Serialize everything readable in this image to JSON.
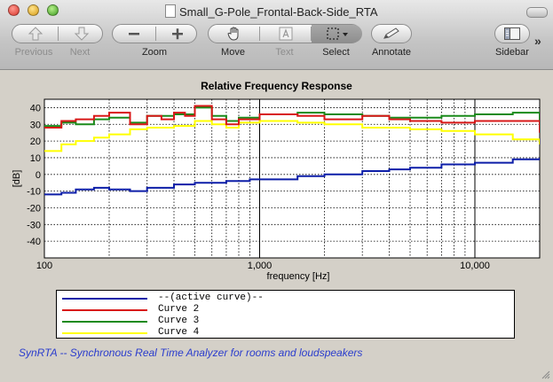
{
  "window": {
    "title": "Small_G-Pole_Frontal-Back-Side_RTA"
  },
  "toolbar": {
    "previous_label": "Previous",
    "next_label": "Next",
    "zoom_label": "Zoom",
    "move_label": "Move",
    "text_label": "Text",
    "select_label": "Select",
    "annotate_label": "Annotate",
    "sidebar_label": "Sidebar"
  },
  "footer": {
    "text": "SynRTA -- Synchronous Real Time Analyzer for rooms and loudspeakers"
  },
  "chart_data": {
    "type": "line",
    "title": "Relative Frequency Response",
    "xlabel": "frequency [Hz]",
    "ylabel": "[dB]",
    "xscale": "log",
    "xlim": [
      100,
      20000
    ],
    "ylim": [
      -50,
      45
    ],
    "grid": true,
    "legend_position": "bottom",
    "y_ticks": [
      40,
      30,
      20,
      10,
      0,
      -10,
      -20,
      -30,
      -40
    ],
    "x_ticks": [
      100,
      1000,
      10000
    ],
    "x_tick_labels": [
      "100",
      "1,000",
      "10,000"
    ],
    "series": [
      {
        "name": "--(active curve)--",
        "color": "#0d1ea8",
        "points": [
          [
            100,
            -12
          ],
          [
            120,
            -11
          ],
          [
            140,
            -9
          ],
          [
            170,
            -8
          ],
          [
            200,
            -9
          ],
          [
            250,
            -10
          ],
          [
            300,
            -8
          ],
          [
            400,
            -6
          ],
          [
            500,
            -5
          ],
          [
            700,
            -4
          ],
          [
            900,
            -3
          ],
          [
            1000,
            -3
          ],
          [
            1500,
            -1
          ],
          [
            2000,
            0
          ],
          [
            3000,
            2
          ],
          [
            4000,
            3
          ],
          [
            5000,
            4
          ],
          [
            7000,
            6
          ],
          [
            10000,
            7
          ],
          [
            15000,
            9
          ],
          [
            20000,
            10
          ]
        ]
      },
      {
        "name": "Curve 2",
        "color": "#d81818",
        "points": [
          [
            100,
            28
          ],
          [
            120,
            32
          ],
          [
            140,
            33
          ],
          [
            170,
            35
          ],
          [
            200,
            37
          ],
          [
            250,
            30
          ],
          [
            300,
            35
          ],
          [
            350,
            33
          ],
          [
            400,
            37
          ],
          [
            450,
            35
          ],
          [
            500,
            41
          ],
          [
            600,
            33
          ],
          [
            700,
            30
          ],
          [
            800,
            33
          ],
          [
            1000,
            36
          ],
          [
            1500,
            35
          ],
          [
            2000,
            33
          ],
          [
            3000,
            35
          ],
          [
            4000,
            33
          ],
          [
            5000,
            32
          ],
          [
            7000,
            31
          ],
          [
            10000,
            32
          ],
          [
            15000,
            32
          ],
          [
            20000,
            25
          ]
        ]
      },
      {
        "name": "Curve 3",
        "color": "#1a8a1a",
        "points": [
          [
            100,
            29
          ],
          [
            120,
            31
          ],
          [
            140,
            30
          ],
          [
            170,
            33
          ],
          [
            200,
            34
          ],
          [
            250,
            31
          ],
          [
            300,
            35
          ],
          [
            400,
            36
          ],
          [
            500,
            40
          ],
          [
            600,
            35
          ],
          [
            700,
            32
          ],
          [
            800,
            34
          ],
          [
            1000,
            36
          ],
          [
            1500,
            37
          ],
          [
            2000,
            36
          ],
          [
            3000,
            35
          ],
          [
            4000,
            34
          ],
          [
            5000,
            34
          ],
          [
            7000,
            35
          ],
          [
            10000,
            36
          ],
          [
            15000,
            37
          ],
          [
            20000,
            30
          ]
        ]
      },
      {
        "name": "Curve 4",
        "color": "#ffff00",
        "points": [
          [
            100,
            14
          ],
          [
            120,
            18
          ],
          [
            140,
            20
          ],
          [
            170,
            22
          ],
          [
            200,
            24
          ],
          [
            250,
            27
          ],
          [
            300,
            28
          ],
          [
            400,
            29
          ],
          [
            500,
            32
          ],
          [
            600,
            30
          ],
          [
            700,
            28
          ],
          [
            800,
            31
          ],
          [
            1000,
            32
          ],
          [
            1500,
            31
          ],
          [
            2000,
            30
          ],
          [
            3000,
            28
          ],
          [
            4000,
            28
          ],
          [
            5000,
            27
          ],
          [
            7000,
            26
          ],
          [
            10000,
            24
          ],
          [
            15000,
            21
          ],
          [
            20000,
            18
          ]
        ]
      }
    ]
  }
}
